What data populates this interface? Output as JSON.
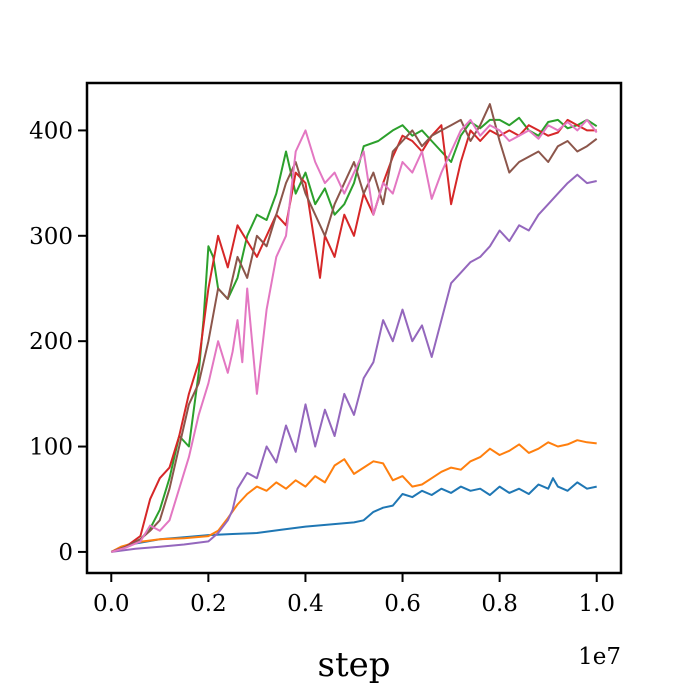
{
  "chart_data": {
    "type": "line",
    "title": "",
    "xlabel": "step",
    "ylabel": "",
    "x_offset_label": "1e7",
    "xlim": [
      -0.05,
      1.05
    ],
    "ylim": [
      -20,
      445
    ],
    "xticks": [
      0.0,
      0.2,
      0.4,
      0.6,
      0.8,
      1.0
    ],
    "xtick_labels": [
      "0.0",
      "0.2",
      "0.4",
      "0.6",
      "0.8",
      "1.0"
    ],
    "yticks": [
      0,
      100,
      200,
      300,
      400
    ],
    "ytick_labels": [
      "0",
      "100",
      "200",
      "300",
      "400"
    ],
    "grid": false,
    "legend": false,
    "series": [
      {
        "color": "#1f77b4",
        "x": [
          0.0,
          0.02,
          0.05,
          0.1,
          0.15,
          0.2,
          0.25,
          0.3,
          0.35,
          0.4,
          0.45,
          0.5,
          0.52,
          0.54,
          0.56,
          0.58,
          0.6,
          0.62,
          0.64,
          0.66,
          0.68,
          0.7,
          0.72,
          0.74,
          0.76,
          0.78,
          0.8,
          0.82,
          0.84,
          0.86,
          0.88,
          0.9,
          0.91,
          0.92,
          0.94,
          0.96,
          0.98,
          1.0
        ],
        "y": [
          0,
          4,
          8,
          12,
          14,
          16,
          17,
          18,
          21,
          24,
          26,
          28,
          30,
          38,
          42,
          44,
          55,
          52,
          58,
          54,
          60,
          56,
          62,
          58,
          60,
          54,
          62,
          56,
          60,
          55,
          64,
          60,
          70,
          62,
          58,
          66,
          60,
          62
        ]
      },
      {
        "color": "#ff7f0e",
        "x": [
          0.0,
          0.02,
          0.05,
          0.1,
          0.15,
          0.2,
          0.22,
          0.24,
          0.26,
          0.28,
          0.3,
          0.32,
          0.34,
          0.36,
          0.38,
          0.4,
          0.42,
          0.44,
          0.46,
          0.48,
          0.5,
          0.52,
          0.54,
          0.56,
          0.58,
          0.6,
          0.62,
          0.64,
          0.66,
          0.68,
          0.7,
          0.72,
          0.74,
          0.76,
          0.78,
          0.8,
          0.82,
          0.84,
          0.86,
          0.88,
          0.9,
          0.92,
          0.94,
          0.96,
          0.98,
          1.0
        ],
        "y": [
          0,
          5,
          9,
          12,
          13,
          15,
          20,
          32,
          45,
          55,
          62,
          58,
          66,
          60,
          68,
          62,
          72,
          66,
          82,
          88,
          74,
          80,
          86,
          84,
          68,
          72,
          62,
          64,
          70,
          76,
          80,
          78,
          86,
          90,
          98,
          92,
          96,
          102,
          94,
          98,
          104,
          100,
          102,
          106,
          104,
          103
        ]
      },
      {
        "color": "#2ca02c",
        "x": [
          0.0,
          0.03,
          0.06,
          0.08,
          0.1,
          0.12,
          0.14,
          0.16,
          0.18,
          0.19,
          0.2,
          0.21,
          0.22,
          0.24,
          0.26,
          0.28,
          0.3,
          0.32,
          0.34,
          0.36,
          0.38,
          0.4,
          0.42,
          0.44,
          0.46,
          0.48,
          0.5,
          0.52,
          0.55,
          0.58,
          0.6,
          0.62,
          0.64,
          0.66,
          0.68,
          0.7,
          0.72,
          0.74,
          0.76,
          0.78,
          0.8,
          0.82,
          0.84,
          0.86,
          0.88,
          0.9,
          0.92,
          0.94,
          0.96,
          0.98,
          1.0
        ],
        "y": [
          0,
          5,
          12,
          22,
          40,
          70,
          110,
          100,
          170,
          220,
          290,
          280,
          250,
          240,
          260,
          300,
          320,
          315,
          340,
          380,
          340,
          360,
          330,
          345,
          320,
          330,
          350,
          385,
          390,
          400,
          405,
          395,
          400,
          390,
          380,
          370,
          395,
          408,
          402,
          410,
          410,
          405,
          412,
          400,
          395,
          408,
          410,
          402,
          405,
          410,
          404
        ]
      },
      {
        "color": "#d62728",
        "x": [
          0.0,
          0.03,
          0.06,
          0.08,
          0.1,
          0.12,
          0.14,
          0.16,
          0.18,
          0.2,
          0.22,
          0.24,
          0.26,
          0.28,
          0.3,
          0.32,
          0.34,
          0.36,
          0.38,
          0.4,
          0.42,
          0.43,
          0.44,
          0.46,
          0.48,
          0.5,
          0.52,
          0.54,
          0.56,
          0.58,
          0.6,
          0.62,
          0.64,
          0.66,
          0.68,
          0.7,
          0.72,
          0.74,
          0.76,
          0.78,
          0.8,
          0.82,
          0.84,
          0.86,
          0.88,
          0.9,
          0.92,
          0.94,
          0.96,
          0.98,
          1.0
        ],
        "y": [
          0,
          5,
          15,
          50,
          70,
          80,
          110,
          150,
          180,
          250,
          300,
          270,
          310,
          295,
          280,
          300,
          320,
          310,
          360,
          350,
          290,
          260,
          300,
          280,
          320,
          300,
          340,
          320,
          350,
          375,
          395,
          390,
          380,
          395,
          405,
          330,
          370,
          400,
          390,
          400,
          395,
          400,
          395,
          405,
          400,
          395,
          398,
          410,
          405,
          400,
          400
        ]
      },
      {
        "color": "#9467bd",
        "x": [
          0.0,
          0.05,
          0.1,
          0.15,
          0.2,
          0.22,
          0.24,
          0.25,
          0.26,
          0.28,
          0.3,
          0.32,
          0.34,
          0.36,
          0.38,
          0.4,
          0.42,
          0.44,
          0.46,
          0.48,
          0.5,
          0.52,
          0.54,
          0.56,
          0.58,
          0.6,
          0.62,
          0.64,
          0.66,
          0.68,
          0.7,
          0.72,
          0.74,
          0.76,
          0.78,
          0.8,
          0.82,
          0.84,
          0.86,
          0.88,
          0.9,
          0.92,
          0.94,
          0.96,
          0.98,
          1.0
        ],
        "y": [
          0,
          3,
          5,
          7,
          10,
          18,
          30,
          40,
          60,
          75,
          70,
          100,
          85,
          120,
          95,
          140,
          100,
          135,
          110,
          150,
          130,
          165,
          180,
          220,
          200,
          230,
          200,
          215,
          185,
          220,
          255,
          265,
          275,
          280,
          290,
          305,
          295,
          310,
          305,
          320,
          330,
          340,
          350,
          358,
          350,
          352
        ]
      },
      {
        "color": "#8c564b",
        "x": [
          0.0,
          0.03,
          0.06,
          0.08,
          0.1,
          0.12,
          0.14,
          0.16,
          0.18,
          0.2,
          0.22,
          0.24,
          0.26,
          0.28,
          0.3,
          0.32,
          0.34,
          0.36,
          0.38,
          0.4,
          0.42,
          0.44,
          0.46,
          0.48,
          0.5,
          0.52,
          0.54,
          0.56,
          0.58,
          0.6,
          0.62,
          0.64,
          0.66,
          0.68,
          0.7,
          0.72,
          0.74,
          0.76,
          0.78,
          0.8,
          0.82,
          0.84,
          0.86,
          0.88,
          0.9,
          0.92,
          0.94,
          0.96,
          0.98,
          1.0
        ],
        "y": [
          0,
          5,
          12,
          20,
          30,
          60,
          100,
          140,
          160,
          200,
          250,
          240,
          280,
          260,
          300,
          290,
          320,
          350,
          370,
          340,
          320,
          300,
          330,
          350,
          370,
          340,
          360,
          330,
          380,
          390,
          400,
          385,
          395,
          400,
          405,
          410,
          390,
          405,
          425,
          390,
          360,
          370,
          375,
          380,
          370,
          385,
          390,
          380,
          385,
          392
        ]
      },
      {
        "color": "#e377c2",
        "x": [
          0.0,
          0.03,
          0.06,
          0.08,
          0.1,
          0.12,
          0.14,
          0.16,
          0.18,
          0.2,
          0.22,
          0.24,
          0.25,
          0.26,
          0.27,
          0.28,
          0.3,
          0.32,
          0.34,
          0.36,
          0.38,
          0.4,
          0.42,
          0.44,
          0.46,
          0.48,
          0.5,
          0.52,
          0.54,
          0.56,
          0.58,
          0.6,
          0.62,
          0.64,
          0.66,
          0.68,
          0.7,
          0.72,
          0.74,
          0.76,
          0.78,
          0.8,
          0.82,
          0.84,
          0.86,
          0.88,
          0.9,
          0.92,
          0.94,
          0.96,
          0.98,
          1.0
        ],
        "y": [
          0,
          4,
          10,
          25,
          20,
          30,
          60,
          90,
          130,
          160,
          200,
          170,
          190,
          220,
          180,
          250,
          150,
          230,
          280,
          300,
          380,
          400,
          370,
          350,
          360,
          340,
          360,
          380,
          320,
          350,
          340,
          370,
          360,
          380,
          335,
          360,
          380,
          400,
          410,
          395,
          405,
          400,
          390,
          395,
          400,
          392,
          405,
          400,
          408,
          400,
          410,
          398
        ]
      }
    ]
  }
}
